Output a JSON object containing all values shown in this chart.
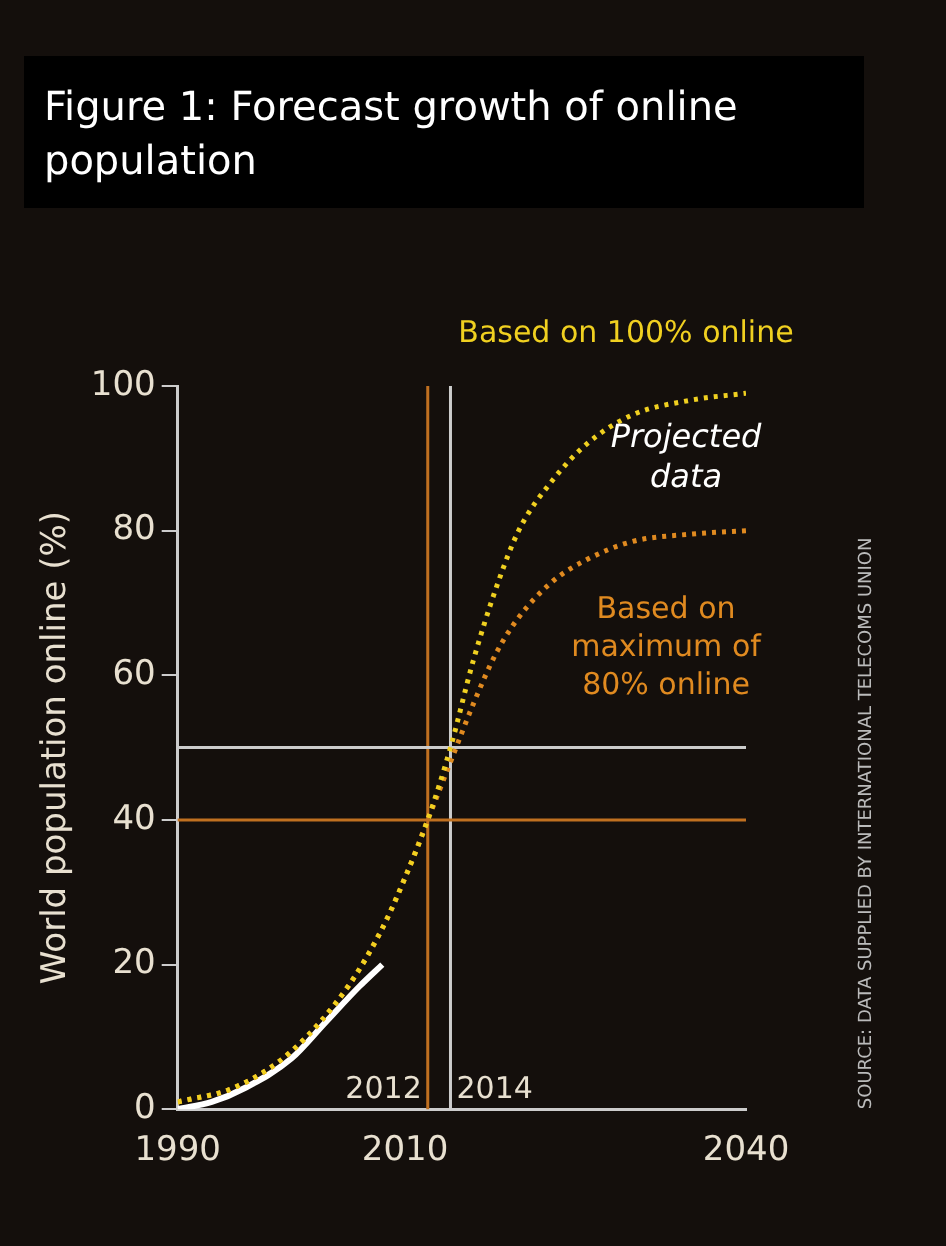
{
  "chart_data": {
    "type": "line",
    "title": "Figure 1: Forecast growth of online population",
    "ylabel": "World population online (%)",
    "xlim": [
      1990,
      2040
    ],
    "xticks": [
      1990,
      2010,
      2040
    ],
    "ylim": [
      0,
      100
    ],
    "yticks": [
      0,
      20,
      40,
      60,
      80,
      100
    ],
    "grid": false,
    "legend": false,
    "marker": "none",
    "series": [
      {
        "name": "Based on 100% online",
        "color": "#f0d020",
        "line_style": "dotted",
        "x": [
          1990,
          1995,
          2000,
          2005,
          2008,
          2010,
          2012,
          2014,
          2016,
          2018,
          2020,
          2023,
          2026,
          2030,
          2035,
          2040
        ],
        "values": [
          1,
          3,
          8,
          17,
          25,
          32,
          40,
          50,
          62,
          72,
          80,
          87,
          92,
          96,
          98,
          99
        ]
      },
      {
        "name": "Based on maximum of 80% online",
        "color": "#e08a20",
        "line_style": "dotted",
        "x": [
          1990,
          1995,
          2000,
          2005,
          2008,
          2010,
          2012,
          2014,
          2016,
          2018,
          2020,
          2023,
          2026,
          2030,
          2035,
          2040
        ],
        "values": [
          1,
          3,
          8,
          17,
          25,
          32,
          40,
          48,
          56,
          63,
          68,
          73,
          76,
          78.5,
          79.5,
          80
        ]
      },
      {
        "color": "#ffffff",
        "line_style": "solid",
        "x": [
          1990,
          1993,
          1996,
          2000,
          2003,
          2006,
          2008
        ],
        "values": [
          0,
          1,
          3,
          7,
          12,
          17,
          20
        ]
      }
    ],
    "ref_lines": [
      {
        "axis": "x",
        "value": 2012,
        "label": "2012",
        "color": "#c07020"
      },
      {
        "axis": "x",
        "value": 2014,
        "label": "2014",
        "color": "#cccccc"
      },
      {
        "axis": "y",
        "value": 40,
        "color": "#c07020"
      },
      {
        "axis": "y",
        "value": 50,
        "color": "#cccccc"
      }
    ],
    "annotations": [
      "Projected data",
      "SOURCE: DATA SUPPLIED BY INTERNATIONAL TELECOMS UNION"
    ]
  }
}
